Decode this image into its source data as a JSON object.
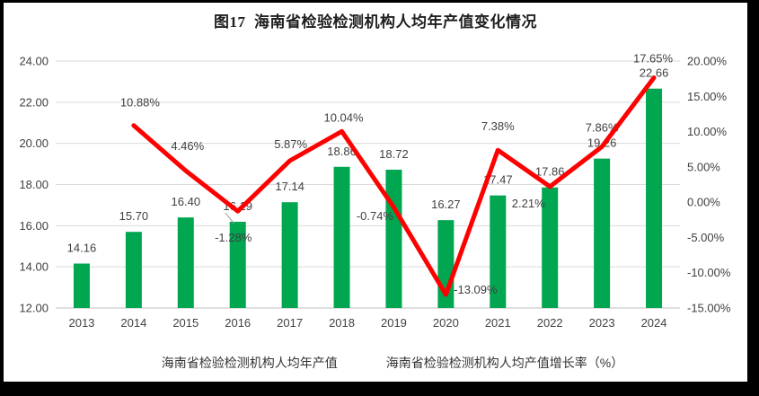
{
  "chart_data": {
    "type": "combo-bar-line",
    "title": "图17  海南省检验检测机构人均年产值变化情况",
    "categories": [
      "2013",
      "2014",
      "2015",
      "2016",
      "2017",
      "2018",
      "2019",
      "2020",
      "2021",
      "2022",
      "2023",
      "2024"
    ],
    "series": [
      {
        "name": "海南省检验检测机构人均年产值",
        "type": "bar",
        "axis": "left",
        "color": "#00A650",
        "values": [
          14.16,
          15.7,
          16.4,
          16.19,
          17.14,
          18.86,
          18.72,
          16.27,
          17.47,
          17.86,
          19.26,
          22.66
        ],
        "labels": [
          "14.16",
          "15.70",
          "16.40",
          "16.19",
          "17.14",
          "18.86",
          "18.72",
          "16.27",
          "17.47",
          "17.86",
          "19.26",
          "22.66"
        ]
      },
      {
        "name": "海南省检验检测机构人均产值增长率（%）",
        "type": "line",
        "axis": "right",
        "color": "#FE0000",
        "values": [
          null,
          10.88,
          4.46,
          -1.28,
          5.87,
          10.04,
          -0.74,
          -13.09,
          7.38,
          2.21,
          7.86,
          17.65
        ],
        "labels": [
          null,
          "10.88%",
          "4.46%",
          "-1.28%",
          "5.87%",
          "10.04%",
          "-0.74%",
          "-13.09%",
          "7.38%",
          "2.21%",
          "7.86%",
          "17.65%"
        ]
      }
    ],
    "left_axis": {
      "min": 12,
      "max": 24,
      "tick_labels": [
        "24.00",
        "22.00",
        "20.00",
        "18.00",
        "16.00",
        "14.00",
        "12.00"
      ]
    },
    "right_axis": {
      "min": -15,
      "max": 20,
      "tick_labels": [
        "20.00%",
        "15.00%",
        "10.00%",
        "5.00%",
        "0.00%",
        "-5.00%",
        "-10.00%",
        "-15.00%"
      ]
    },
    "grid": true,
    "legend_position": "bottom",
    "colors": {
      "bar": "#00A650",
      "line": "#FE0000",
      "gridline": "#D9D9D9",
      "axis_text": "#404040",
      "label_leader": "#9E9E9E"
    }
  }
}
